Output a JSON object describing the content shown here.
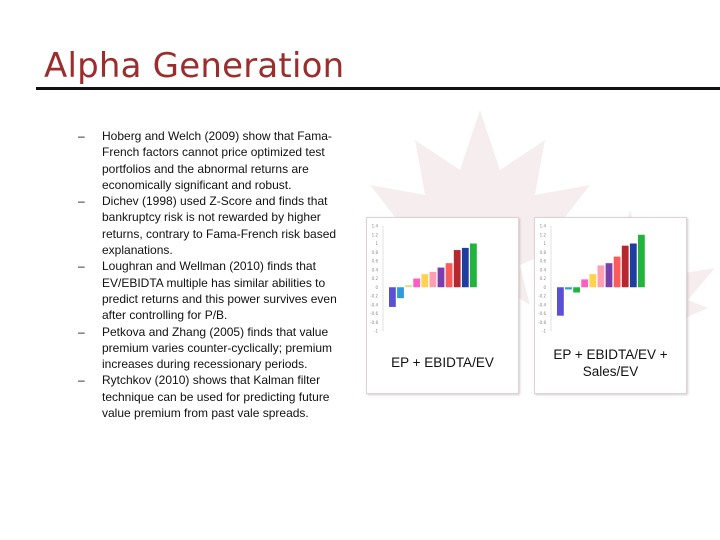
{
  "title": "Alpha Generation",
  "bullets": [
    "Hoberg and Welch (2009) show that Fama-French factors cannot price optimized test portfolios and the abnormal returns are economically significant and robust.",
    "Dichev (1998) used Z-Score and finds that bankruptcy risk is not rewarded by higher returns, contrary to Fama-French risk based explanations.",
    "Loughran and Wellman (2010) finds that EV/EBIDTA multiple has similar abilities to predict returns and this power survives even after controlling for P/B.",
    "Petkova and Zhang (2005) finds that value premium varies counter-cyclically; premium increases during recessionary periods.",
    "Rytchkov (2010) shows that Kalman filter technique can be used for predicting future value premium from past vale spreads."
  ],
  "bullet_marker": "–",
  "chart_data": [
    {
      "type": "bar",
      "title": "EP + EBIDTA/EV",
      "xlabel": "",
      "ylabel": "",
      "ylim": [
        -1.0,
        1.4
      ],
      "grid": false,
      "legend": "none",
      "y_ticks": [
        "1.4",
        "1.2",
        "1",
        "0.8",
        "0.6",
        "0.4",
        "0.2",
        "0",
        "-0.2",
        "-0.4",
        "-0.6",
        "-0.8",
        "-1"
      ],
      "values": [
        -0.45,
        -0.25,
        0.05,
        0.2,
        0.3,
        0.35,
        0.45,
        0.55,
        0.85,
        0.9,
        1.0
      ],
      "colors": [
        "#5a4fd8",
        "#2f9bd8",
        "#d7e889",
        "#ff5cc4",
        "#ffd34d",
        "#ff9fb4",
        "#7a3fae",
        "#ff5a5a",
        "#b8262e",
        "#1e3fa0",
        "#22b53d"
      ]
    },
    {
      "type": "bar",
      "title": "EP + EBIDTA/EV + Sales/EV",
      "xlabel": "",
      "ylabel": "",
      "ylim": [
        -1.0,
        1.4
      ],
      "grid": false,
      "legend": "none",
      "y_ticks": [
        "1.4",
        "1.2",
        "1",
        "0.8",
        "0.6",
        "0.4",
        "0.2",
        "0",
        "-0.2",
        "-0.4",
        "-0.6",
        "-0.8",
        "-1"
      ],
      "values": [
        -0.65,
        -0.05,
        -0.12,
        0.18,
        0.3,
        0.5,
        0.55,
        0.7,
        0.95,
        1.0,
        1.2
      ],
      "colors": [
        "#5a4fd8",
        "#2f9bd8",
        "#22b53d",
        "#ff5cc4",
        "#ffd34d",
        "#ff9fb4",
        "#7a3fae",
        "#ff5a5a",
        "#b8262e",
        "#1e3fa0",
        "#22b53d"
      ]
    }
  ]
}
